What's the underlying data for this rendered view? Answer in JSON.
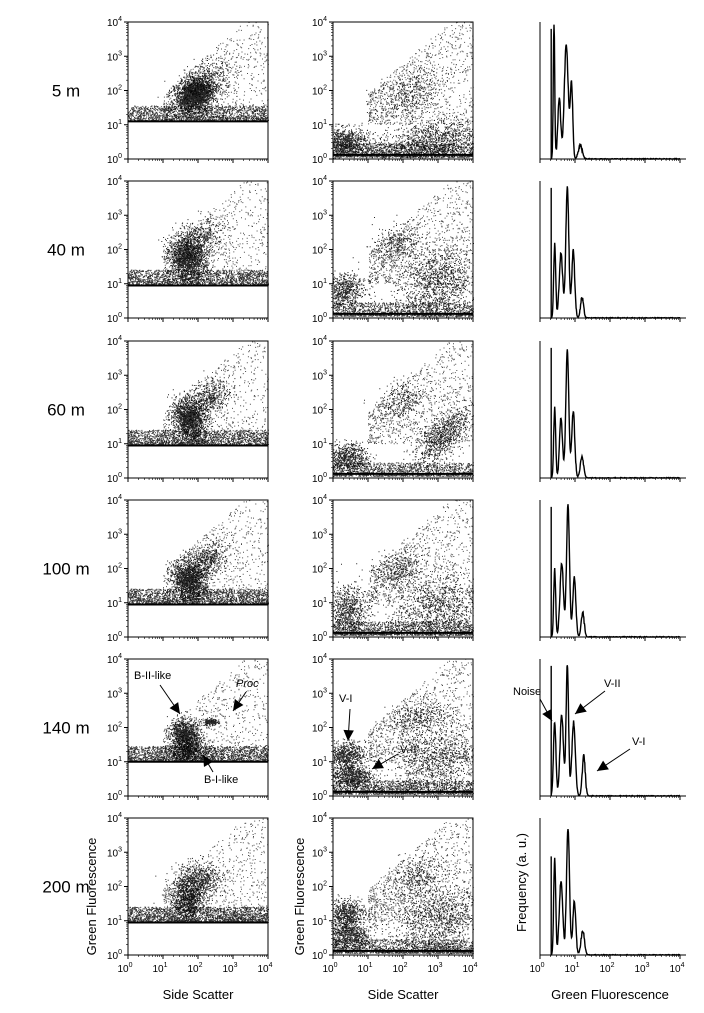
{
  "chart_data": {
    "type": "scatter",
    "description_columns": [
      "Side Scatter vs Green Fluorescence (gated)",
      "Side Scatter vs Green Fluorescence (all)",
      "Green Fluorescence histogram"
    ],
    "rows": [
      {
        "depth": "5 m"
      },
      {
        "depth": "40 m"
      },
      {
        "depth": "60 m"
      },
      {
        "depth": "100 m"
      },
      {
        "depth": "140 m"
      },
      {
        "depth": "200 m"
      }
    ],
    "axes": {
      "log_scale": true,
      "xlim": [
        1,
        10000
      ],
      "ylim": [
        1,
        10000
      ],
      "tick_base": "10",
      "tick_exponents": [
        "0",
        "1",
        "2",
        "3",
        "4"
      ]
    },
    "xlabel_scatter": "Side Scatter",
    "ylabel_scatter": "Green Fluorescence",
    "xlabel_hist": "Green Fluorescence",
    "ylabel_hist": "Frequency (a. u.)",
    "annotations": {
      "col1": [
        "B-II-like",
        "Proc",
        "B-I-like"
      ],
      "col2": [
        "V-I",
        "V-II"
      ],
      "col3": [
        "Noise",
        "V-II",
        "V-I"
      ]
    }
  }
}
